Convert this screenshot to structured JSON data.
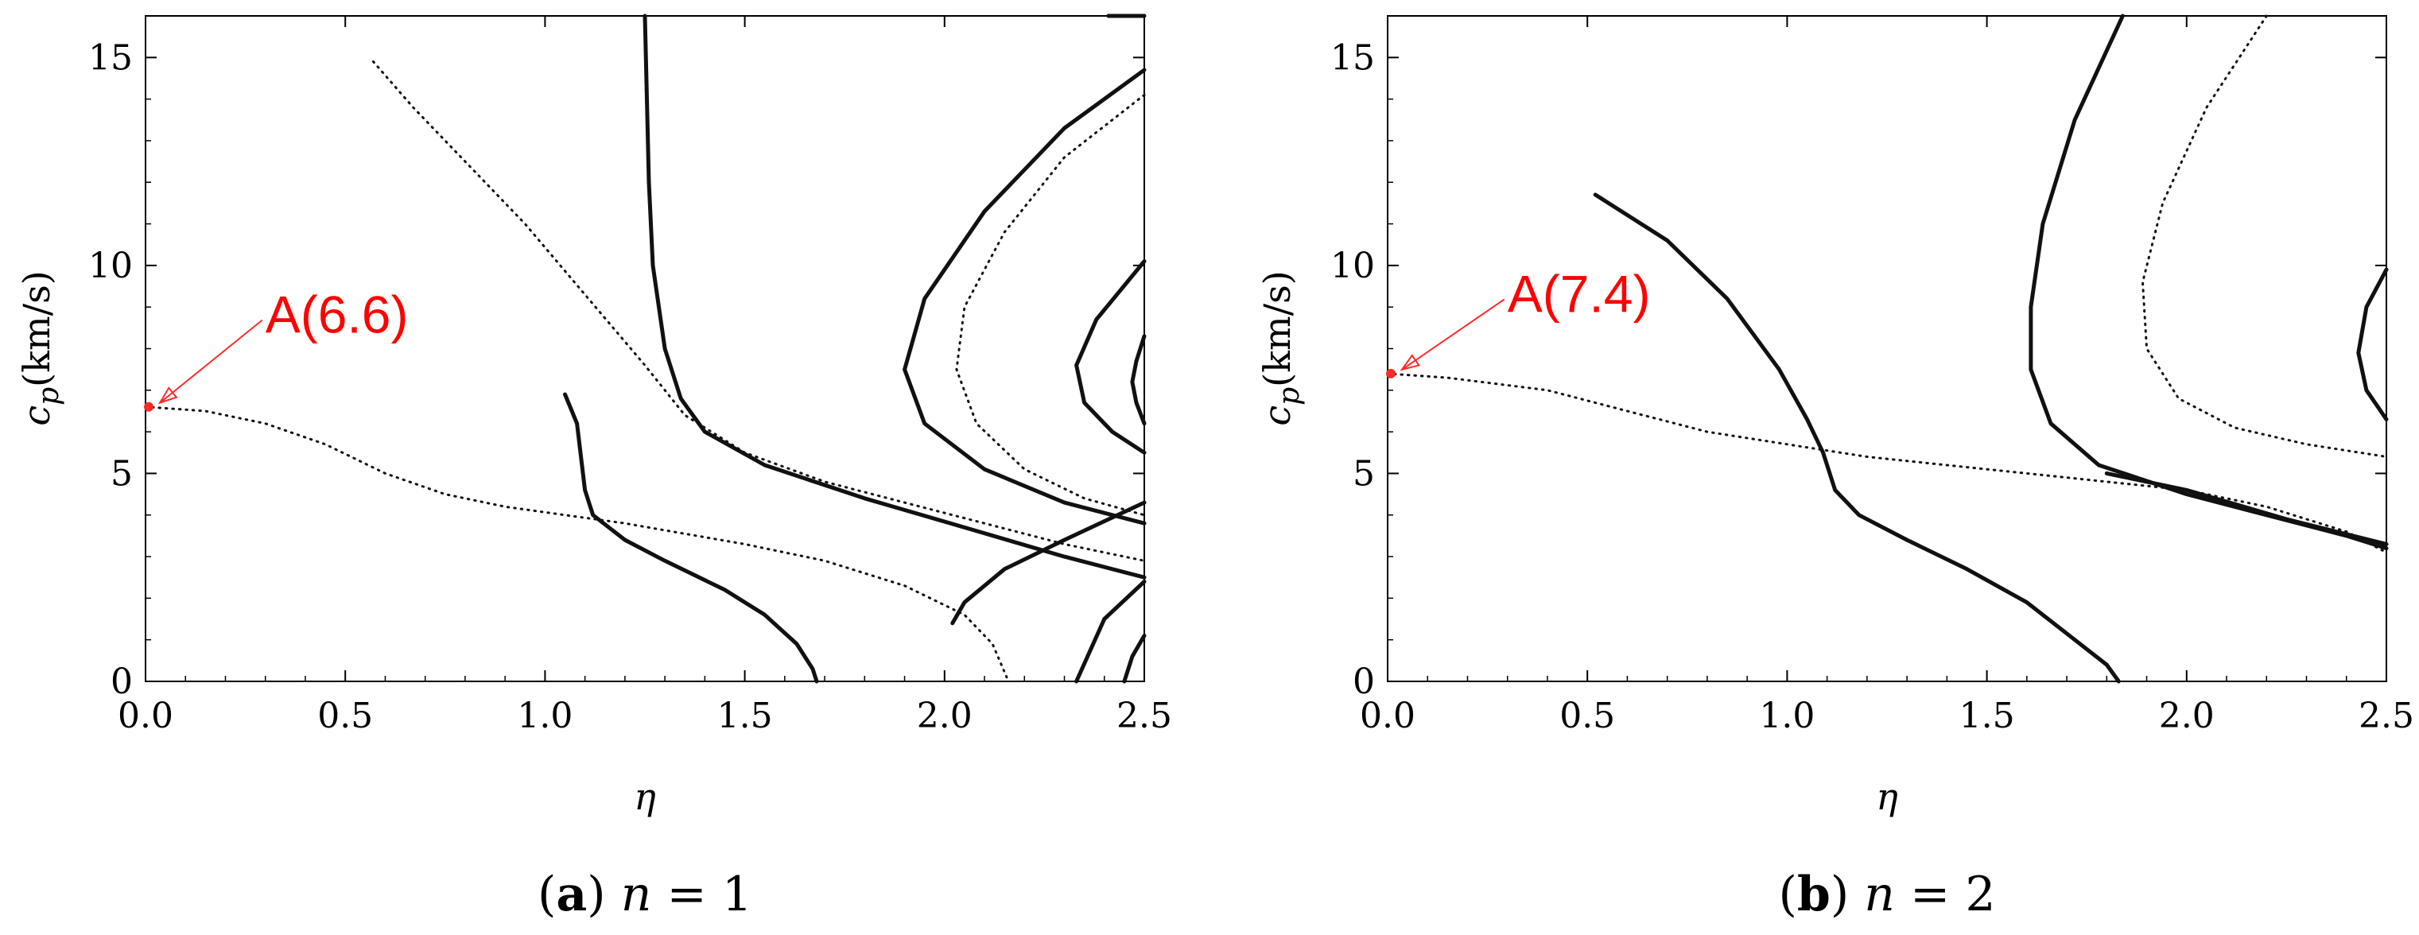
{
  "chart_data": [
    {
      "panel": "a",
      "type": "line",
      "xlabel": "η",
      "ylabel_main": "c",
      "ylabel_sub": "p",
      "ylabel_unit": "(km/s)",
      "xlim": [
        0,
        2.5
      ],
      "ylim": [
        0,
        16
      ],
      "x_ticks": [
        0.0,
        0.5,
        1.0,
        1.5,
        2.0,
        2.5
      ],
      "x_tick_labels": [
        "0.0",
        "0.5",
        "1.0",
        "1.5",
        "2.0",
        "2.5"
      ],
      "y_ticks": [
        0,
        5,
        10,
        15
      ],
      "y_tick_labels": [
        "0",
        "5",
        "10",
        "15"
      ],
      "grid": false,
      "caption_letter": "a",
      "caption_var": "n",
      "caption_rest": " = 1",
      "annotation": {
        "text": "A(6.6)",
        "x": 0.0,
        "y": 6.6,
        "text_x": 0.3,
        "text_y": 8.8
      },
      "series": [
        {
          "style": "dotted",
          "points": [
            [
              0.0,
              6.6
            ],
            [
              0.15,
              6.5
            ],
            [
              0.3,
              6.2
            ],
            [
              0.45,
              5.7
            ],
            [
              0.6,
              5.0
            ],
            [
              0.75,
              4.5
            ],
            [
              0.9,
              4.2
            ],
            [
              1.05,
              4.0
            ],
            [
              1.2,
              3.8
            ],
            [
              1.35,
              3.55
            ],
            [
              1.5,
              3.3
            ],
            [
              1.7,
              2.9
            ],
            [
              1.9,
              2.3
            ],
            [
              2.05,
              1.6
            ],
            [
              2.12,
              0.9
            ],
            [
              2.16,
              0.0
            ]
          ]
        },
        {
          "style": "dotted",
          "points": [
            [
              0.57,
              14.9
            ],
            [
              0.67,
              13.8
            ],
            [
              0.8,
              12.5
            ],
            [
              0.95,
              11.0
            ],
            [
              1.1,
              9.3
            ],
            [
              1.25,
              7.6
            ],
            [
              1.35,
              6.4
            ],
            [
              1.5,
              5.5
            ],
            [
              1.7,
              4.8
            ],
            [
              1.9,
              4.3
            ],
            [
              2.1,
              3.8
            ],
            [
              2.3,
              3.3
            ],
            [
              2.5,
              2.9
            ]
          ]
        },
        {
          "style": "solid",
          "points": [
            [
              1.05,
              6.9
            ],
            [
              1.08,
              6.2
            ],
            [
              1.1,
              4.6
            ],
            [
              1.12,
              4.0
            ],
            [
              1.2,
              3.4
            ],
            [
              1.3,
              2.9
            ],
            [
              1.45,
              2.2
            ],
            [
              1.55,
              1.6
            ],
            [
              1.63,
              0.9
            ],
            [
              1.67,
              0.3
            ],
            [
              1.68,
              0.0
            ]
          ]
        },
        {
          "style": "solid",
          "points": [
            [
              1.25,
              16.0
            ],
            [
              1.26,
              12.0
            ],
            [
              1.27,
              10.0
            ],
            [
              1.3,
              8.0
            ],
            [
              1.34,
              6.8
            ],
            [
              1.4,
              6.0
            ],
            [
              1.55,
              5.2
            ],
            [
              1.8,
              4.4
            ],
            [
              2.05,
              3.7
            ],
            [
              2.3,
              3.0
            ],
            [
              2.5,
              2.5
            ]
          ]
        },
        {
          "style": "solid",
          "points": [
            [
              2.5,
              14.7
            ],
            [
              2.3,
              13.3
            ],
            [
              2.1,
              11.3
            ],
            [
              1.95,
              9.2
            ],
            [
              1.9,
              7.5
            ],
            [
              1.95,
              6.2
            ],
            [
              2.1,
              5.1
            ],
            [
              2.3,
              4.3
            ],
            [
              2.5,
              3.8
            ]
          ]
        },
        {
          "style": "dotted",
          "points": [
            [
              2.5,
              14.1
            ],
            [
              2.3,
              12.6
            ],
            [
              2.15,
              10.8
            ],
            [
              2.05,
              9.0
            ],
            [
              2.03,
              7.5
            ],
            [
              2.08,
              6.2
            ],
            [
              2.2,
              5.1
            ],
            [
              2.35,
              4.4
            ],
            [
              2.5,
              4.0
            ]
          ]
        },
        {
          "style": "solid",
          "points": [
            [
              2.41,
              16.0
            ],
            [
              2.5,
              16.0
            ]
          ]
        },
        {
          "style": "solid",
          "points": [
            [
              2.5,
              10.1
            ],
            [
              2.38,
              8.7
            ],
            [
              2.33,
              7.6
            ],
            [
              2.35,
              6.7
            ],
            [
              2.42,
              6.0
            ],
            [
              2.5,
              5.5
            ]
          ]
        },
        {
          "style": "solid",
          "points": [
            [
              2.5,
              8.3
            ],
            [
              2.48,
              7.7
            ],
            [
              2.47,
              7.2
            ],
            [
              2.48,
              6.7
            ],
            [
              2.5,
              6.2
            ]
          ]
        },
        {
          "style": "solid",
          "points": [
            [
              2.5,
              4.3
            ],
            [
              2.3,
              3.4
            ],
            [
              2.15,
              2.7
            ],
            [
              2.05,
              1.9
            ],
            [
              2.02,
              1.4
            ]
          ]
        },
        {
          "style": "solid",
          "points": [
            [
              2.5,
              2.4
            ],
            [
              2.4,
              1.5
            ],
            [
              2.33,
              0.0
            ]
          ]
        },
        {
          "style": "solid",
          "points": [
            [
              2.5,
              1.1
            ],
            [
              2.47,
              0.6
            ],
            [
              2.45,
              0.0
            ]
          ]
        }
      ]
    },
    {
      "panel": "b",
      "type": "line",
      "xlabel": "η",
      "ylabel_main": "c",
      "ylabel_sub": "p",
      "ylabel_unit": "(km/s)",
      "xlim": [
        0,
        2.5
      ],
      "ylim": [
        0,
        16
      ],
      "x_ticks": [
        0.0,
        0.5,
        1.0,
        1.5,
        2.0,
        2.5
      ],
      "x_tick_labels": [
        "0.0",
        "0.5",
        "1.0",
        "1.5",
        "2.0",
        "2.5"
      ],
      "y_ticks": [
        0,
        5,
        10,
        15
      ],
      "y_tick_labels": [
        "0",
        "5",
        "10",
        "15"
      ],
      "grid": false,
      "caption_letter": "b",
      "caption_var": "n",
      "caption_rest": " = 2",
      "annotation": {
        "text": "A(7.4)",
        "x": 0.0,
        "y": 7.4,
        "text_x": 0.3,
        "text_y": 9.3
      },
      "series": [
        {
          "style": "dotted",
          "points": [
            [
              0.0,
              7.4
            ],
            [
              0.15,
              7.3
            ],
            [
              0.4,
              7.0
            ],
            [
              0.6,
              6.5
            ],
            [
              0.8,
              6.0
            ],
            [
              1.0,
              5.7
            ],
            [
              1.2,
              5.4
            ],
            [
              1.4,
              5.2
            ],
            [
              1.6,
              5.0
            ],
            [
              1.8,
              4.8
            ],
            [
              2.0,
              4.6
            ],
            [
              2.2,
              4.2
            ],
            [
              2.4,
              3.6
            ],
            [
              2.5,
              3.1
            ]
          ]
        },
        {
          "style": "solid",
          "points": [
            [
              0.52,
              11.7
            ],
            [
              0.7,
              10.6
            ],
            [
              0.85,
              9.2
            ],
            [
              0.98,
              7.5
            ],
            [
              1.05,
              6.3
            ],
            [
              1.09,
              5.5
            ],
            [
              1.12,
              4.6
            ],
            [
              1.18,
              4.0
            ],
            [
              1.3,
              3.4
            ],
            [
              1.45,
              2.7
            ],
            [
              1.6,
              1.9
            ],
            [
              1.72,
              1.0
            ],
            [
              1.8,
              0.4
            ],
            [
              1.83,
              0.0
            ]
          ]
        },
        {
          "style": "solid",
          "points": [
            [
              1.84,
              16.0
            ],
            [
              1.72,
              13.5
            ],
            [
              1.64,
              11.0
            ],
            [
              1.61,
              9.0
            ],
            [
              1.61,
              7.5
            ],
            [
              1.66,
              6.2
            ],
            [
              1.78,
              5.2
            ],
            [
              2.0,
              4.5
            ],
            [
              2.2,
              4.0
            ],
            [
              2.4,
              3.5
            ],
            [
              2.5,
              3.2
            ]
          ]
        },
        {
          "style": "dotted",
          "points": [
            [
              2.2,
              16.0
            ],
            [
              2.05,
              13.8
            ],
            [
              1.94,
              11.5
            ],
            [
              1.89,
              9.6
            ],
            [
              1.9,
              8.0
            ],
            [
              1.98,
              6.8
            ],
            [
              2.12,
              6.1
            ],
            [
              2.3,
              5.7
            ],
            [
              2.5,
              5.4
            ]
          ]
        },
        {
          "style": "solid",
          "points": [
            [
              2.5,
              9.9
            ],
            [
              2.45,
              9.0
            ],
            [
              2.43,
              7.9
            ],
            [
              2.45,
              7.0
            ],
            [
              2.5,
              6.3
            ]
          ]
        },
        {
          "style": "solid",
          "points": [
            [
              1.8,
              5.0
            ],
            [
              2.0,
              4.6
            ],
            [
              2.25,
              3.9
            ],
            [
              2.5,
              3.3
            ]
          ]
        }
      ]
    }
  ]
}
